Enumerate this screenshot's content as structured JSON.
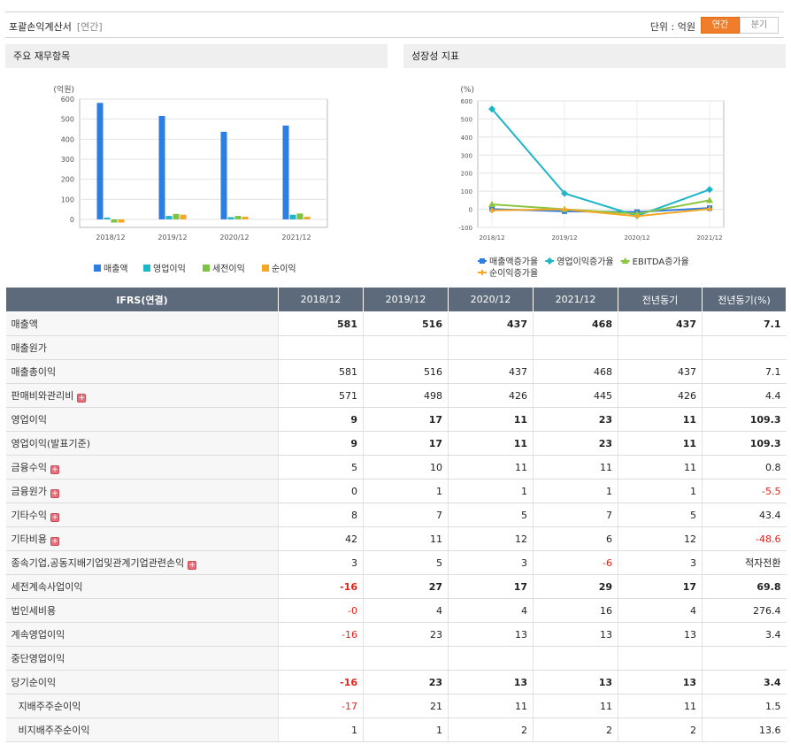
{
  "header": {
    "title": "포괄손익계산서",
    "title_sub": "[연간]",
    "unit_label": "단위 : 억원",
    "tab_annual": "연간",
    "tab_quarter": "분기"
  },
  "panel_left": {
    "title": "주요 재무항목"
  },
  "panel_right": {
    "title": "성장성 지표"
  },
  "colors": {
    "sales": "#2e7de1",
    "operating": "#1db5c8",
    "pretax": "#7dc242",
    "net": "#f5a623",
    "ebitda": "#8cc63f",
    "header_bg": "#5c6a7b",
    "accent": "#f07d2a",
    "negative": "#e1231b"
  },
  "chart_data": [
    {
      "type": "bar",
      "title": "",
      "ylabel": "(억원)",
      "ylim": [
        -40,
        600
      ],
      "yticks": [
        0,
        100,
        200,
        300,
        400,
        500,
        600
      ],
      "categories": [
        "2018/12",
        "2019/12",
        "2020/12",
        "2021/12"
      ],
      "legend_position": "bottom",
      "grid": true,
      "series": [
        {
          "name": "매출액",
          "color": "#2e7de1",
          "values": [
            581,
            516,
            437,
            468
          ]
        },
        {
          "name": "영업이익",
          "color": "#1db5c8",
          "values": [
            9,
            17,
            11,
            23
          ]
        },
        {
          "name": "세전이익",
          "color": "#7dc242",
          "values": [
            -16,
            27,
            17,
            29
          ]
        },
        {
          "name": "순이익",
          "color": "#f5a623",
          "values": [
            -16,
            23,
            13,
            13
          ]
        }
      ]
    },
    {
      "type": "line",
      "title": "",
      "ylabel": "(%)",
      "ylim": [
        -100,
        600
      ],
      "yticks": [
        -100,
        0,
        100,
        200,
        300,
        400,
        500,
        600
      ],
      "categories": [
        "2018/12",
        "2019/12",
        "2020/12",
        "2021/12"
      ],
      "legend_position": "bottom",
      "grid": true,
      "series": [
        {
          "name": "매출액증가율",
          "color": "#2e7de1",
          "marker": "square",
          "values": [
            1,
            -11,
            -15,
            7
          ]
        },
        {
          "name": "영업이익증가율",
          "color": "#1db5c8",
          "marker": "diamond",
          "values": [
            555,
            88,
            -36,
            109
          ]
        },
        {
          "name": "EBITDA증가율",
          "color": "#8cc63f",
          "marker": "triangle",
          "values": [
            27,
            0,
            -25,
            50
          ]
        },
        {
          "name": "순이익증가율",
          "color": "#f5a623",
          "marker": "cross",
          "values": [
            -6,
            0,
            -38,
            2
          ]
        }
      ]
    }
  ],
  "table": {
    "headers": [
      "IFRS(연결)",
      "2018/12",
      "2019/12",
      "2020/12",
      "2021/12",
      "전년동기",
      "전년동기(%)"
    ],
    "rows": [
      {
        "label": "매출액",
        "values": [
          "581",
          "516",
          "437",
          "468",
          "437",
          "7.1"
        ]
      },
      {
        "label": "매출원가",
        "values": [
          "",
          "",
          "",
          "",
          "",
          ""
        ]
      },
      {
        "label": "매출총이익",
        "values": [
          "581",
          "516",
          "437",
          "468",
          "437",
          "7.1"
        ]
      },
      {
        "label": "판매비와관리비",
        "values": [
          "571",
          "498",
          "426",
          "445",
          "426",
          "4.4"
        ]
      },
      {
        "label": "영업이익",
        "values": [
          "9",
          "17",
          "11",
          "23",
          "11",
          "109.3"
        ]
      },
      {
        "label": "영업이익(발표기준)",
        "values": [
          "9",
          "17",
          "11",
          "23",
          "11",
          "109.3"
        ]
      },
      {
        "label": "금융수익",
        "values": [
          "5",
          "10",
          "11",
          "11",
          "11",
          "0.8"
        ]
      },
      {
        "label": "금융원가",
        "values": [
          "0",
          "1",
          "1",
          "1",
          "1",
          "-5.5"
        ]
      },
      {
        "label": "기타수익",
        "values": [
          "8",
          "7",
          "5",
          "7",
          "5",
          "43.4"
        ]
      },
      {
        "label": "기타비용",
        "values": [
          "42",
          "11",
          "12",
          "6",
          "12",
          "-48.6"
        ]
      },
      {
        "label": "종속기업,공동지배기업및관계기업관련손익",
        "values": [
          "3",
          "5",
          "3",
          "-6",
          "3",
          "적자전환"
        ]
      },
      {
        "label": "세전계속사업이익",
        "values": [
          "-16",
          "27",
          "17",
          "29",
          "17",
          "69.8"
        ]
      },
      {
        "label": "법인세비용",
        "values": [
          "-0",
          "4",
          "4",
          "16",
          "4",
          "276.4"
        ]
      },
      {
        "label": "계속영업이익",
        "values": [
          "-16",
          "23",
          "13",
          "13",
          "13",
          "3.4"
        ]
      },
      {
        "label": "중단영업이익",
        "values": [
          "",
          "",
          "",
          "",
          "",
          ""
        ]
      },
      {
        "label": "당기순이익",
        "values": [
          "-16",
          "23",
          "13",
          "13",
          "13",
          "3.4"
        ]
      },
      {
        "label": "지배주주순이익",
        "values": [
          "-17",
          "21",
          "11",
          "11",
          "11",
          "1.5"
        ]
      },
      {
        "label": "비지배주주순이익",
        "values": [
          "1",
          "1",
          "2",
          "2",
          "2",
          "13.6"
        ]
      }
    ]
  }
}
